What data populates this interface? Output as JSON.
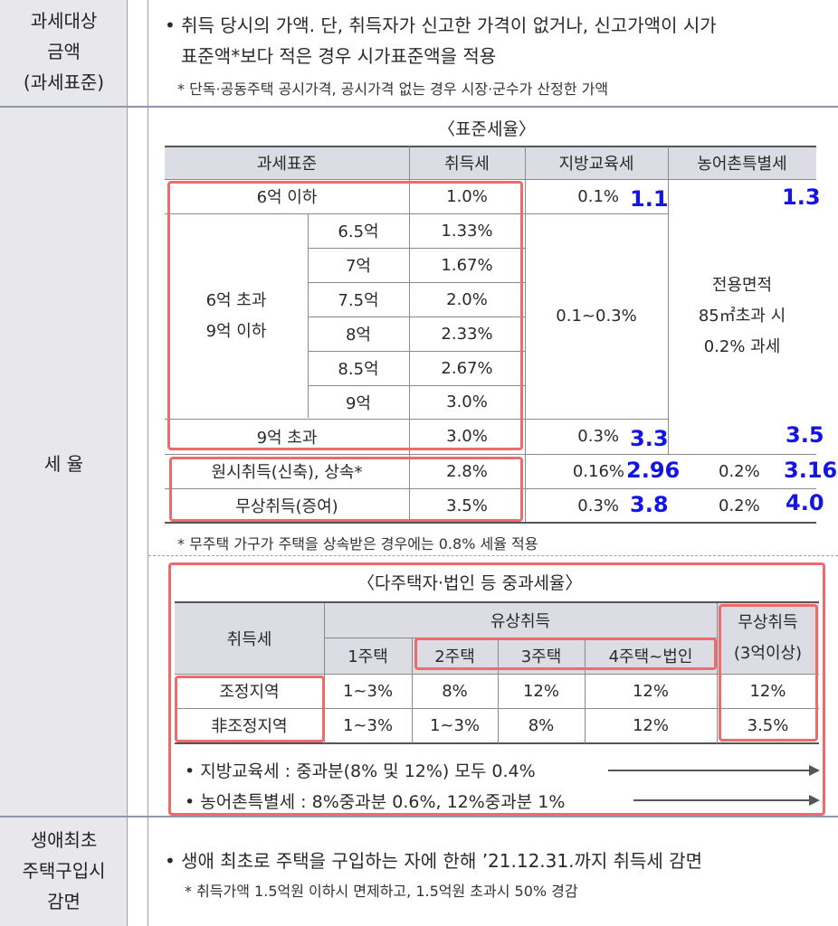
{
  "labels": {
    "tax_base": [
      "과세대상",
      "금액",
      "(과세표준)"
    ],
    "tax_rate": "세 율",
    "first_home": [
      "생애최초",
      "주택구입시",
      "감면"
    ]
  },
  "tax_base": {
    "line1": "• 취득 당시의 가액. 단, 취득자가 신고한 가격이 없거나, 신고가액이 시가",
    "line2": "표준액*보다 적은 경우 시가표준액을 적용",
    "note": "* 단독·공동주택 공시가격, 공시가격 없는 경우 시장·군수가 산정한 가액"
  },
  "standard": {
    "title": "〈표준세율〉",
    "headers": [
      "과세표준",
      "취득세",
      "지방교육세",
      "농어촌특별세"
    ],
    "rows": {
      "r6": {
        "base": "6억 이하",
        "rate": "1.0%",
        "edu": "0.1%"
      },
      "mid_label": [
        "6억 초과",
        "9억 이하"
      ],
      "mid": [
        {
          "sub": "6.5억",
          "rate": "1.33%"
        },
        {
          "sub": "7억",
          "rate": "1.67%"
        },
        {
          "sub": "7.5억",
          "rate": "2.0%"
        },
        {
          "sub": "8억",
          "rate": "2.33%"
        },
        {
          "sub": "8.5억",
          "rate": "2.67%"
        },
        {
          "sub": "9억",
          "rate": "3.0%"
        }
      ],
      "mid_edu": "0.1~0.3%",
      "rural_note": [
        "전용면적",
        "85㎡초과 시",
        "0.2% 과세"
      ],
      "r9": {
        "base": "9억 초과",
        "rate": "3.0%",
        "edu": "0.3%"
      },
      "original": {
        "base": "원시취득(신축), 상속*",
        "rate": "2.8%",
        "edu": "0.16%",
        "rural": "0.2%"
      },
      "gift": {
        "base": "무상취득(증여)",
        "rate": "3.5%",
        "edu": "0.3%",
        "rural": "0.2%"
      }
    },
    "note": "* 무주택 가구가 주택을 상속받은 경우에는 0.8% 세율 적용"
  },
  "annotations": {
    "a1": "1.1",
    "a2": "1.3",
    "a3": "3.3",
    "a4": "3.5",
    "a5": "2.96",
    "a6": "3.16",
    "a7": "3.8",
    "a8": "4.0"
  },
  "heavy": {
    "title": "〈다주택자·법인 등 중과세율〉",
    "col0": "취득세",
    "paid": "유상취득",
    "free": [
      "무상취득",
      "(3억이상)"
    ],
    "sub": [
      "1주택",
      "2주택",
      "3주택",
      "4주택~법인"
    ],
    "rows": [
      {
        "label": "조정지역",
        "vals": [
          "1~3%",
          "8%",
          "12%",
          "12%",
          "12%"
        ]
      },
      {
        "label": "非조정지역",
        "vals": [
          "1~3%",
          "1~3%",
          "8%",
          "12%",
          "3.5%"
        ]
      }
    ],
    "bullet1": "• 지방교육세 : 중과분(8% 및 12%) 모두 0.4%",
    "bullet2": "• 농어촌특별세 : 8%중과분 0.6%, 12%중과분 1%"
  },
  "first_home": {
    "line1": "• 생애 최초로 주택을 구입하는 자에 한해 ’21.12.31.까지 취득세 감면",
    "note": "* 취득가액 1.5억원 이하시 면제하고, 1.5억원 초과시 50% 경감"
  }
}
